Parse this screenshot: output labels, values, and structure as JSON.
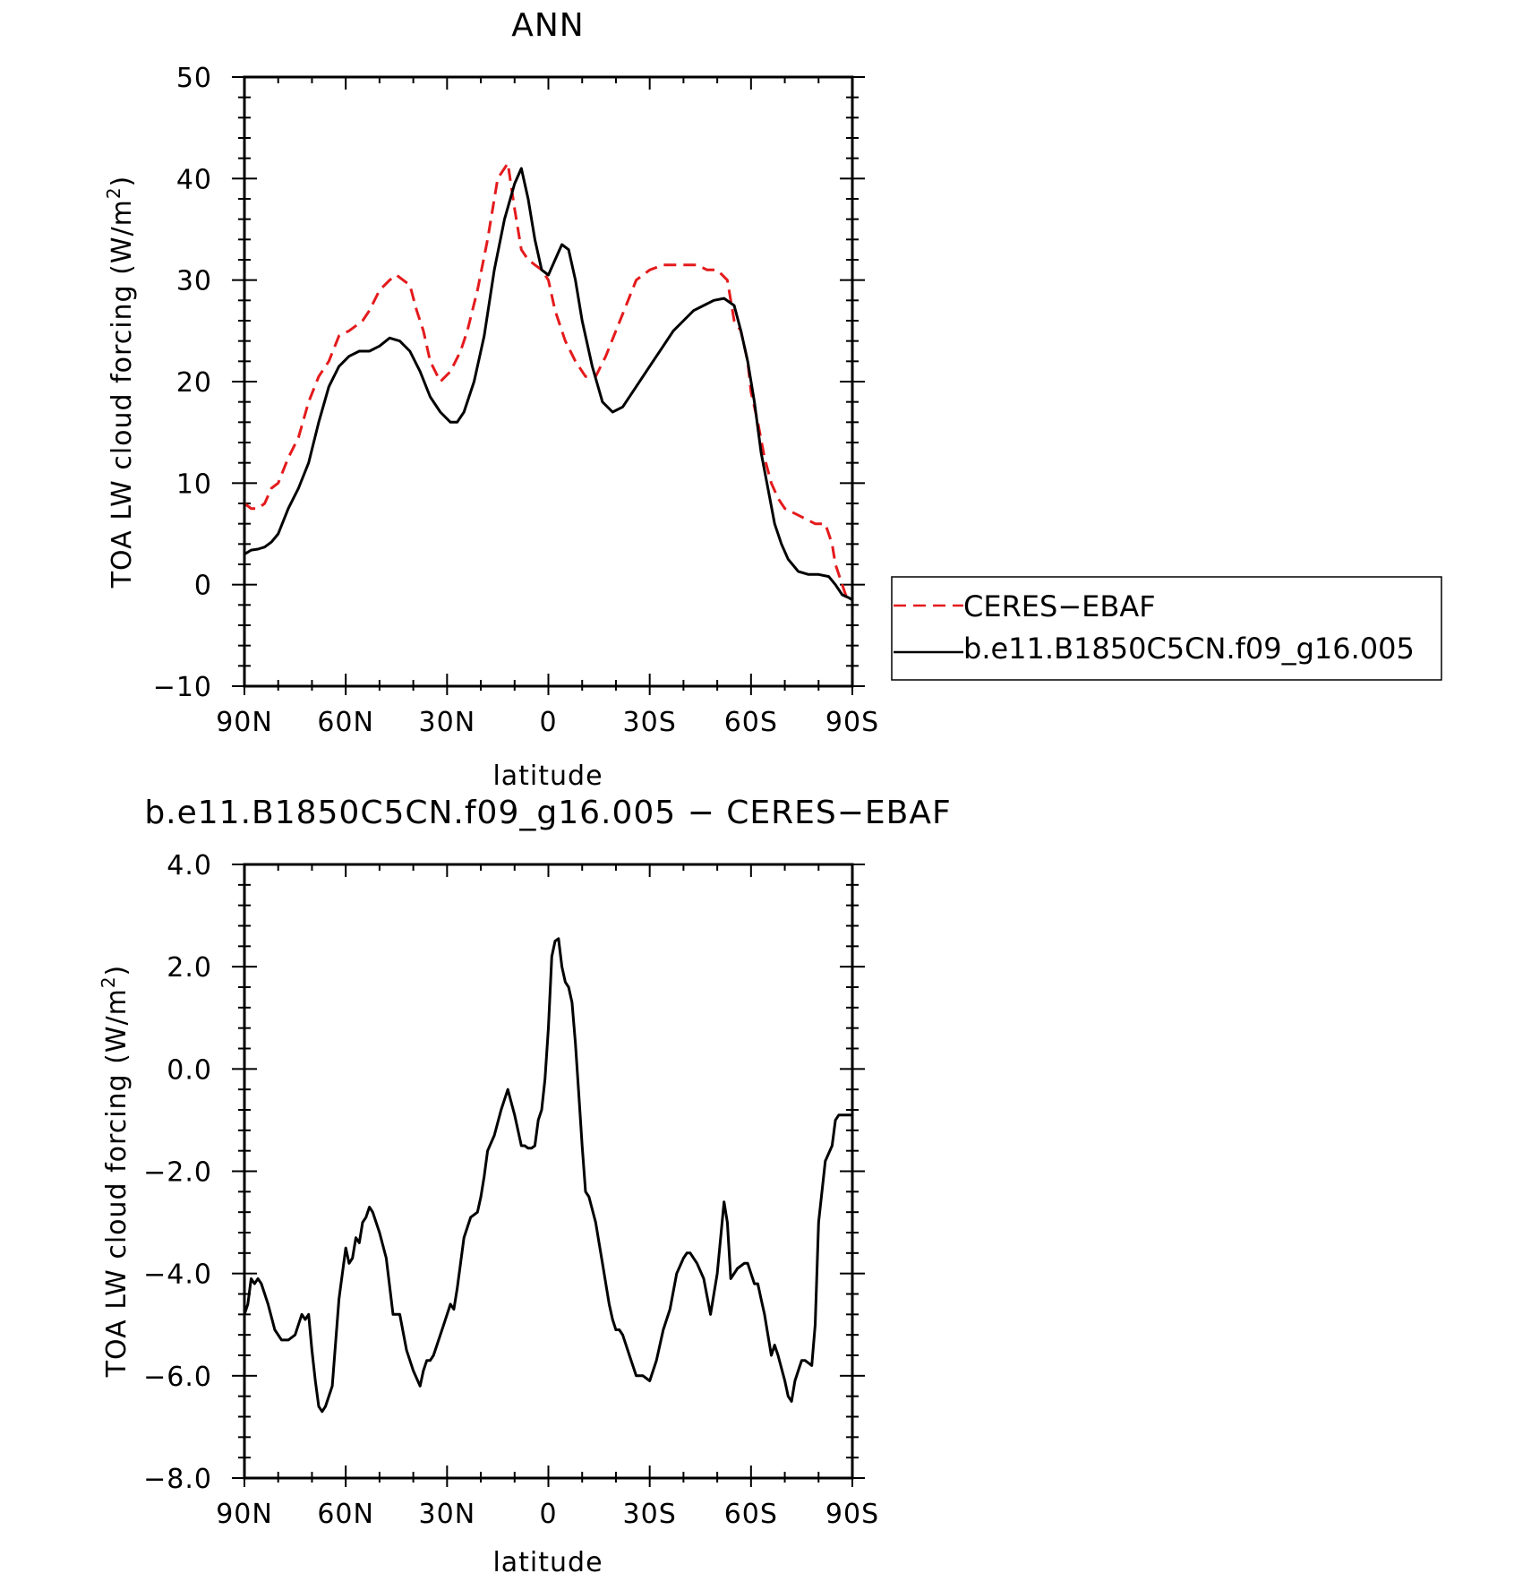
{
  "chart_data": [
    {
      "type": "line",
      "title": "ANN",
      "xlabel": "latitude",
      "ylabel": "TOA LW cloud forcing (W/m",
      "ylabel_sup": "2",
      "ylabel_tail": ")",
      "xlim": [
        90,
        -90
      ],
      "ylim": [
        -10,
        50
      ],
      "x_ticks": [
        90,
        60,
        30,
        0,
        -30,
        -60,
        -90
      ],
      "x_tick_labels": [
        "90N",
        "60N",
        "30N",
        "0",
        "30S",
        "60S",
        "90S"
      ],
      "y_ticks": [
        -10,
        0,
        10,
        20,
        30,
        40,
        50
      ],
      "y_tick_labels": [
        "−10",
        "0",
        "10",
        "20",
        "30",
        "40",
        "50"
      ],
      "grid": false,
      "legend_position": "outside-right",
      "colors": {
        "CERES-EBAF": "#e41a1c",
        "b.e11.B1850C5CN.f09_g16.005": "#000000"
      },
      "series": [
        {
          "name": "CERES-EBAF",
          "style": "dashed",
          "x": [
            90,
            88,
            86,
            84,
            82,
            80,
            77,
            74,
            71,
            68,
            65,
            62,
            59,
            57,
            55,
            53,
            50,
            47,
            45,
            43,
            41,
            39,
            37,
            35,
            32,
            29,
            26,
            24,
            21,
            18,
            15,
            12,
            10,
            8,
            6,
            4,
            2,
            1,
            0,
            -2,
            -5,
            -8,
            -11,
            -14,
            -17,
            -20,
            -23,
            -26,
            -30,
            -34,
            -38,
            -41,
            -44,
            -47,
            -50,
            -53,
            -55,
            -57,
            -59,
            -60,
            -62,
            -64,
            -66,
            -68,
            -70,
            -73,
            -76,
            -79,
            -82,
            -84,
            -85,
            -86,
            -87,
            -88,
            -89,
            -90
          ],
          "y": [
            8,
            7.5,
            7.5,
            8,
            9.5,
            10,
            12.5,
            14.5,
            18,
            20.5,
            22,
            24.5,
            25,
            25.5,
            26,
            27,
            29,
            30,
            30.5,
            30,
            29.5,
            27,
            25,
            22,
            20,
            21,
            23,
            25,
            29,
            34,
            40,
            41.5,
            37,
            33,
            32,
            31.5,
            31,
            30.5,
            30,
            27,
            24,
            22,
            20.5,
            20.5,
            22.5,
            25,
            27.5,
            30,
            31,
            31.5,
            31.5,
            31.5,
            31.5,
            31,
            31,
            30,
            26,
            25,
            22,
            19,
            16,
            12.5,
            10,
            8.5,
            7.5,
            7,
            6.5,
            6,
            6,
            4,
            2,
            1,
            0,
            -1,
            -1.2,
            -1.5
          ]
        },
        {
          "name": "b.e11.B1850C5CN.f09_g16.005",
          "style": "solid",
          "x": [
            90,
            88,
            86,
            84,
            82,
            80,
            77,
            74,
            71,
            68,
            65,
            62,
            59,
            56,
            53,
            50,
            47,
            44,
            41,
            38,
            35,
            32,
            29,
            27,
            25,
            22,
            19,
            16,
            13,
            10,
            8,
            6,
            4,
            2,
            0,
            -2,
            -4,
            -6,
            -8,
            -10,
            -13,
            -16,
            -19,
            -22,
            -25,
            -28,
            -31,
            -34,
            -37,
            -40,
            -43,
            -46,
            -49,
            -52,
            -55,
            -57,
            -59,
            -61,
            -63,
            -65,
            -67,
            -69,
            -71,
            -74,
            -77,
            -80,
            -83,
            -85,
            -87,
            -89,
            -90
          ],
          "y": [
            3,
            3.4,
            3.5,
            3.7,
            4.2,
            5,
            7.5,
            9.5,
            12,
            16,
            19.5,
            21.5,
            22.5,
            23,
            23,
            23.5,
            24.3,
            24,
            23,
            21,
            18.5,
            17,
            16,
            16,
            17,
            20,
            24.5,
            31,
            36,
            39.5,
            41,
            38,
            34,
            31,
            30.5,
            32,
            33.5,
            33,
            30,
            26,
            21.5,
            18,
            17,
            17.5,
            19,
            20.5,
            22,
            23.5,
            25,
            26,
            27,
            27.5,
            28,
            28.2,
            27.5,
            25,
            22,
            18,
            13,
            9.5,
            6,
            4,
            2.5,
            1.3,
            1,
            1,
            0.8,
            0,
            -1,
            -1.3,
            -1.5
          ]
        }
      ]
    },
    {
      "type": "line",
      "title": "b.e11.B1850C5CN.f09_g16.005 − CERES−EBAF",
      "xlabel": "latitude",
      "ylabel": "TOA LW cloud forcing (W/m",
      "ylabel_sup": "2",
      "ylabel_tail": ")",
      "xlim": [
        90,
        -90
      ],
      "ylim": [
        -8,
        4
      ],
      "x_ticks": [
        90,
        60,
        30,
        0,
        -30,
        -60,
        -90
      ],
      "x_tick_labels": [
        "90N",
        "60N",
        "30N",
        "0",
        "30S",
        "60S",
        "90S"
      ],
      "y_ticks": [
        -8,
        -6,
        -4,
        -2,
        0,
        2,
        4
      ],
      "y_tick_labels": [
        "−8.0",
        "−6.0",
        "−4.0",
        "−2.0",
        "0.0",
        "2.0",
        "4.0"
      ],
      "grid": false,
      "colors": {
        "difference": "#000000"
      },
      "series": [
        {
          "style": "solid",
          "x": [
            90,
            89,
            88,
            87,
            86,
            85,
            83,
            81,
            79,
            77,
            75,
            73,
            72,
            71,
            70,
            69,
            68,
            67,
            66,
            64,
            62,
            60,
            59,
            58,
            57,
            56,
            55,
            54,
            53,
            52,
            51,
            50,
            48,
            46,
            45,
            44,
            42,
            40,
            38,
            37,
            36,
            35,
            34,
            33,
            31,
            29,
            28,
            27,
            26,
            25,
            23,
            21,
            20,
            19,
            18,
            16,
            14,
            12,
            10,
            8,
            7,
            6,
            5,
            4,
            3,
            2,
            1,
            0,
            -1,
            -2,
            -3,
            -4,
            -5,
            -6,
            -7,
            -8,
            -9,
            -10,
            -11,
            -12,
            -14,
            -16,
            -18,
            -19,
            -20,
            -21,
            -22,
            -24,
            -26,
            -28,
            -30,
            -32,
            -34,
            -36,
            -38,
            -40,
            -41,
            -42,
            -44,
            -46,
            -48,
            -50,
            -52,
            -53,
            -54,
            -56,
            -58,
            -59,
            -60,
            -61,
            -62,
            -63,
            -64,
            -65,
            -66,
            -67,
            -68,
            -70,
            -71,
            -72,
            -73,
            -74,
            -75,
            -76,
            -78,
            -79,
            -80,
            -82,
            -84,
            -85,
            -86,
            -87,
            -88,
            -89,
            -90
          ],
          "y": [
            -4.8,
            -4.6,
            -4.1,
            -4.2,
            -4.1,
            -4.2,
            -4.6,
            -5.1,
            -5.3,
            -5.3,
            -5.2,
            -4.8,
            -4.9,
            -4.8,
            -5.5,
            -6.1,
            -6.6,
            -6.7,
            -6.6,
            -6.2,
            -4.5,
            -3.5,
            -3.8,
            -3.7,
            -3.3,
            -3.4,
            -3.0,
            -2.9,
            -2.7,
            -2.8,
            -3.0,
            -3.2,
            -3.7,
            -4.8,
            -4.8,
            -4.8,
            -5.5,
            -5.9,
            -6.2,
            -5.9,
            -5.7,
            -5.7,
            -5.6,
            -5.4,
            -5.0,
            -4.6,
            -4.7,
            -4.3,
            -3.8,
            -3.3,
            -2.9,
            -2.8,
            -2.5,
            -2.1,
            -1.6,
            -1.3,
            -0.8,
            -0.4,
            -0.9,
            -1.5,
            -1.5,
            -1.55,
            -1.55,
            -1.5,
            -1.0,
            -0.8,
            -0.2,
            0.8,
            2.2,
            2.5,
            2.55,
            2.0,
            1.7,
            1.6,
            1.3,
            0.5,
            -0.5,
            -1.5,
            -2.4,
            -2.5,
            -3.0,
            -3.8,
            -4.6,
            -4.9,
            -5.1,
            -5.1,
            -5.2,
            -5.6,
            -6.0,
            -6.0,
            -6.1,
            -5.7,
            -5.1,
            -4.7,
            -4.0,
            -3.7,
            -3.6,
            -3.6,
            -3.8,
            -4.1,
            -4.8,
            -4.0,
            -2.6,
            -3.0,
            -4.1,
            -3.9,
            -3.8,
            -3.8,
            -4.0,
            -4.2,
            -4.2,
            -4.5,
            -4.8,
            -5.2,
            -5.6,
            -5.4,
            -5.6,
            -6.1,
            -6.4,
            -6.5,
            -6.1,
            -5.9,
            -5.7,
            -5.7,
            -5.8,
            -5.0,
            -3.0,
            -1.8,
            -1.5,
            -1.0,
            -0.9,
            -0.9,
            -0.9,
            -0.9,
            -0.9
          ]
        }
      ]
    }
  ],
  "legend": {
    "entries": [
      "CERES−EBAF",
      "b.e11.B1850C5CN.f09_g16.005"
    ]
  }
}
